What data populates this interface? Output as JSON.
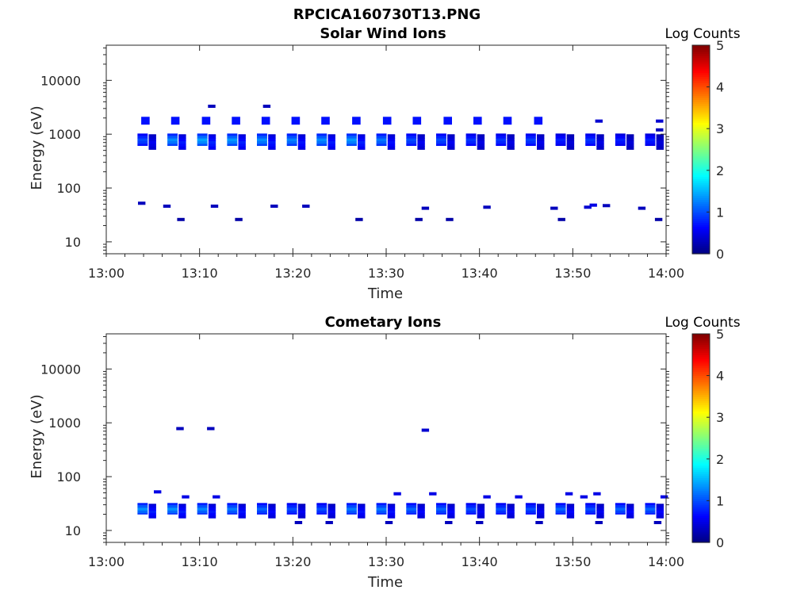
{
  "figure": {
    "title": "RPCICA160730T13.PNG"
  },
  "chart_data": [
    {
      "type": "heatmap",
      "title": "Solar Wind Ions",
      "xlabel": "Time",
      "ylabel": "Energy (eV)",
      "y_scale": "log",
      "ylim": [
        6,
        45000
      ],
      "xlim": [
        "13:00",
        "14:00"
      ],
      "x_ticks": [
        "13:00",
        "13:10",
        "13:20",
        "13:30",
        "13:40",
        "13:50",
        "14:00"
      ],
      "y_ticks": [
        "10",
        "100",
        "1000",
        "10000"
      ],
      "colorbar": {
        "label": "Log Counts",
        "range": [
          0,
          5
        ],
        "ticks": [
          "0",
          "1",
          "2",
          "3",
          "4",
          "5"
        ],
        "colormap": "jet"
      },
      "grid": false,
      "main_times": [
        4.4,
        7.6,
        10.8,
        14.0,
        17.2,
        20.4,
        23.6,
        26.8,
        30.0,
        33.2,
        36.4,
        39.6,
        42.8,
        46.0,
        49.2,
        52.4,
        55.6,
        58.8
      ],
      "main_band_eV": [
        550,
        1050
      ],
      "main_band_intensity": [
        0.9,
        1.2,
        1.3,
        1.25,
        1.2,
        1.15,
        1.2,
        1.25,
        1.1,
        0.9,
        0.9,
        0.8,
        0.8,
        0.85,
        0.7,
        0.8,
        0.7,
        0.7
      ],
      "upper_patch_eV": [
        1500,
        2100
      ],
      "upper_times": [
        4.2,
        7.4,
        10.7,
        13.9,
        17.1,
        20.3,
        23.5,
        26.8,
        30.1,
        33.3,
        36.6,
        39.8,
        43.0,
        46.3
      ],
      "upper_intensity": 0.7,
      "sparse_points": [
        {
          "t": 3.8,
          "eV": 52,
          "v": 0.3
        },
        {
          "t": 6.5,
          "eV": 46,
          "v": 0.3
        },
        {
          "t": 8.0,
          "eV": 26,
          "v": 0.2
        },
        {
          "t": 11.3,
          "eV": 3300,
          "v": 0.3
        },
        {
          "t": 11.6,
          "eV": 46,
          "v": 0.3
        },
        {
          "t": 14.2,
          "eV": 26,
          "v": 0.2
        },
        {
          "t": 17.2,
          "eV": 3300,
          "v": 0.3
        },
        {
          "t": 18.0,
          "eV": 46,
          "v": 0.3
        },
        {
          "t": 21.4,
          "eV": 46,
          "v": 0.3
        },
        {
          "t": 27.1,
          "eV": 26,
          "v": 0.2
        },
        {
          "t": 33.5,
          "eV": 26,
          "v": 0.2
        },
        {
          "t": 34.2,
          "eV": 42,
          "v": 0.3
        },
        {
          "t": 36.8,
          "eV": 26,
          "v": 0.2
        },
        {
          "t": 40.8,
          "eV": 44,
          "v": 0.3
        },
        {
          "t": 48.0,
          "eV": 42,
          "v": 0.3
        },
        {
          "t": 48.8,
          "eV": 26,
          "v": 0.2
        },
        {
          "t": 51.6,
          "eV": 44,
          "v": 0.4
        },
        {
          "t": 52.2,
          "eV": 48,
          "v": 0.5
        },
        {
          "t": 53.6,
          "eV": 47,
          "v": 0.3
        },
        {
          "t": 52.8,
          "eV": 1750,
          "v": 0.4
        },
        {
          "t": 57.4,
          "eV": 42,
          "v": 0.3
        },
        {
          "t": 59.2,
          "eV": 26,
          "v": 0.2
        },
        {
          "t": 59.3,
          "eV": 1750,
          "v": 0.4
        },
        {
          "t": 59.3,
          "eV": 1200,
          "v": 0.3
        }
      ]
    },
    {
      "type": "heatmap",
      "title": "Cometary Ions",
      "xlabel": "Time",
      "ylabel": "Energy (eV)",
      "y_scale": "log",
      "ylim": [
        6,
        45000
      ],
      "xlim": [
        "13:00",
        "14:00"
      ],
      "x_ticks": [
        "13:00",
        "13:10",
        "13:20",
        "13:30",
        "13:40",
        "13:50",
        "14:00"
      ],
      "y_ticks": [
        "10",
        "100",
        "1000",
        "10000"
      ],
      "colorbar": {
        "label": "Log Counts",
        "range": [
          0,
          5
        ],
        "ticks": [
          "0",
          "1",
          "2",
          "3",
          "4",
          "5"
        ],
        "colormap": "jet"
      },
      "grid": false,
      "main_times": [
        4.4,
        7.6,
        10.8,
        14.0,
        17.2,
        20.4,
        23.6,
        26.8,
        30.0,
        33.2,
        36.4,
        39.6,
        42.8,
        46.0,
        49.2,
        52.4,
        55.6,
        58.8
      ],
      "main_band_eV": [
        18,
        33
      ],
      "main_band_intensity": [
        1.2,
        1.2,
        1.15,
        1.1,
        1.0,
        0.9,
        0.9,
        1.1,
        1.1,
        1.0,
        1.0,
        0.9,
        0.9,
        0.9,
        1.0,
        0.9,
        1.0,
        1.0
      ],
      "sparse_points": [
        {
          "t": 7.9,
          "eV": 780,
          "v": 0.3
        },
        {
          "t": 11.2,
          "eV": 780,
          "v": 0.3
        },
        {
          "t": 34.2,
          "eV": 730,
          "v": 0.4
        },
        {
          "t": 5.5,
          "eV": 52,
          "v": 0.5
        },
        {
          "t": 8.5,
          "eV": 42,
          "v": 0.5
        },
        {
          "t": 11.8,
          "eV": 42,
          "v": 0.5
        },
        {
          "t": 31.2,
          "eV": 48,
          "v": 0.5
        },
        {
          "t": 35.0,
          "eV": 48,
          "v": 0.5
        },
        {
          "t": 40.8,
          "eV": 42,
          "v": 0.5
        },
        {
          "t": 44.2,
          "eV": 42,
          "v": 0.5
        },
        {
          "t": 49.6,
          "eV": 48,
          "v": 0.5
        },
        {
          "t": 51.2,
          "eV": 42,
          "v": 0.5
        },
        {
          "t": 52.6,
          "eV": 48,
          "v": 0.5
        },
        {
          "t": 59.8,
          "eV": 42,
          "v": 0.5
        },
        {
          "t": 20.6,
          "eV": 14,
          "v": 0.3
        },
        {
          "t": 23.9,
          "eV": 14,
          "v": 0.3
        },
        {
          "t": 30.3,
          "eV": 14,
          "v": 0.3
        },
        {
          "t": 36.7,
          "eV": 14,
          "v": 0.3
        },
        {
          "t": 40.0,
          "eV": 14,
          "v": 0.3
        },
        {
          "t": 46.4,
          "eV": 14,
          "v": 0.3
        },
        {
          "t": 52.8,
          "eV": 14,
          "v": 0.3
        },
        {
          "t": 59.1,
          "eV": 14,
          "v": 0.3
        }
      ]
    }
  ]
}
